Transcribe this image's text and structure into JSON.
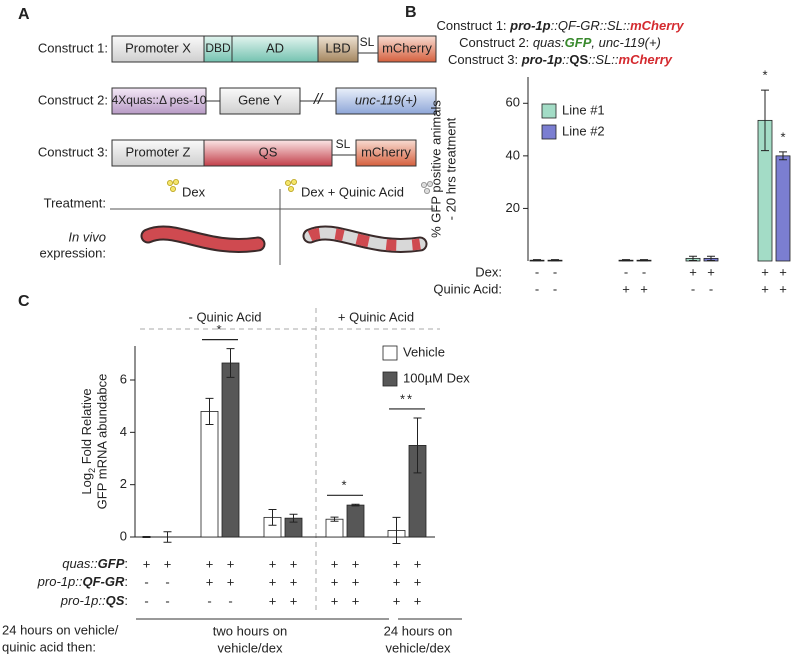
{
  "panel_labels": [
    "A",
    "B",
    "C"
  ],
  "panel_a": {
    "constructs": [
      {
        "label": "Construct 1:",
        "parts": [
          "Promoter X",
          "DBD",
          "AD",
          "LBD",
          "SL",
          "mCherry"
        ]
      },
      {
        "label": "Construct 2:",
        "parts": [
          "4Xquas::Δ pes-10",
          "Gene Y",
          "//",
          "unc-119(+)"
        ]
      },
      {
        "label": "Construct 3:",
        "parts": [
          "Promoter Z",
          "QS",
          "SL",
          "mCherry"
        ]
      }
    ],
    "treatment_label": "Treatment:",
    "treatments": [
      "Dex",
      "Dex + Quinic Acid"
    ],
    "expression_label": [
      "In vivo",
      "expression:"
    ]
  },
  "chart_data": [
    {
      "type": "bar",
      "title": [
        [
          {
            "text": "Construct 1: "
          },
          {
            "text": "pro-1p",
            "style": "bi"
          },
          {
            "text": "::QF-GR::SL::",
            "style": "i"
          },
          {
            "text": "mCherry",
            "style": "bi",
            "color": "#d42a2f"
          }
        ],
        [
          {
            "text": "Construct 2: "
          },
          {
            "text": "quas:",
            "style": "i"
          },
          {
            "text": "GFP",
            "style": "bi",
            "color": "#3a8a2e"
          },
          {
            "text": ", unc-119(+)",
            "style": "i"
          }
        ],
        [
          {
            "text": "Construct 3: "
          },
          {
            "text": "pro-1p",
            "style": "bi"
          },
          {
            "text": "::",
            "style": "i"
          },
          {
            "text": "QS",
            "style": "b"
          },
          {
            "text": "::SL::",
            "style": "i"
          },
          {
            "text": "mCherry",
            "style": "bi",
            "color": "#d42a2f"
          }
        ]
      ],
      "ylabel": [
        "% GFP positive animals",
        "- 20 hrs treatment"
      ],
      "ylim": [
        0,
        70
      ],
      "yticks": [
        20,
        40,
        60
      ],
      "categories": [
        null,
        null,
        null,
        null
      ],
      "series": [
        {
          "name": "Line #1",
          "color": "#a3dcc6",
          "values": [
            0.3,
            0.3,
            1,
            53.5
          ],
          "errors": [
            0.2,
            0.2,
            0.8,
            11.5
          ],
          "significance": [
            null,
            null,
            null,
            "*"
          ]
        },
        {
          "name": "Line #2",
          "color": "#7b7ed1",
          "values": [
            0.3,
            0.3,
            1,
            40
          ],
          "errors": [
            0.2,
            0.2,
            0.8,
            1.5
          ],
          "significance": [
            null,
            null,
            null,
            "*"
          ]
        }
      ],
      "conditions": [
        {
          "label": "Dex:",
          "values": [
            "-",
            "-",
            "-",
            "-",
            "+",
            "+",
            "+",
            "+"
          ]
        },
        {
          "label": "Quinic Acid:",
          "values": [
            "-",
            "-",
            "+",
            "+",
            "-",
            "-",
            "+",
            "+"
          ]
        }
      ],
      "legend": "upper left"
    },
    {
      "type": "bar",
      "ylabel": [
        [
          {
            "text": "Log"
          },
          {
            "text": "2",
            "style": "sub"
          },
          {
            "text": " Fold Relative"
          }
        ],
        "GFP mRNA abundabce"
      ],
      "ylim": [
        0,
        7.3
      ],
      "yticks": [
        0,
        2,
        4,
        6
      ],
      "categories": [
        null,
        null,
        null,
        null,
        null
      ],
      "series": [
        {
          "name": "Vehicle",
          "color": "#ffffff",
          "values": [
            0,
            4.8,
            0.75,
            0.68,
            0.25
          ],
          "errors": [
            0.02,
            0.5,
            0.3,
            0.08,
            0.5
          ]
        },
        {
          "name": "100µM Dex",
          "color": "#575757",
          "values": [
            0,
            6.65,
            0.72,
            1.22,
            3.5
          ],
          "errors": [
            0.2,
            0.55,
            0.15,
            0.03,
            1.05
          ]
        }
      ],
      "significance": [
        null,
        "*",
        null,
        "*",
        "**"
      ],
      "conditions": [
        {
          "label": [
            {
              "text": "quas::",
              "style": "i"
            },
            {
              "text": "GFP",
              "style": "bi"
            },
            {
              "text": ":"
            }
          ],
          "values": [
            "+",
            "+",
            "+",
            "+",
            "+",
            "+",
            "+",
            "+",
            "+",
            "+"
          ]
        },
        {
          "label": [
            {
              "text": "pro-1p::",
              "style": "i"
            },
            {
              "text": "QF-GR",
              "style": "bi"
            },
            {
              "text": ":"
            }
          ],
          "values": [
            "-",
            "-",
            "+",
            "+",
            "+",
            "+",
            "+",
            "+",
            "+",
            "+"
          ]
        },
        {
          "label": [
            {
              "text": "pro-1p::",
              "style": "i"
            },
            {
              "text": "QS",
              "style": "bi"
            },
            {
              "text": ":"
            }
          ],
          "values": [
            "-",
            "-",
            "-",
            "-",
            "+",
            "+",
            "+",
            "+",
            "+",
            "+"
          ]
        }
      ],
      "headers": [
        "- Quinic Acid",
        "+ Quinic Acid"
      ],
      "footer": {
        "label": [
          "24 hours on vehicle/",
          "quinic acid then:"
        ],
        "spans": [
          [
            "two hours on",
            "vehicle/dex"
          ],
          [
            "24 hours on",
            "vehicle/dex"
          ]
        ]
      },
      "legend": "upper right"
    }
  ]
}
